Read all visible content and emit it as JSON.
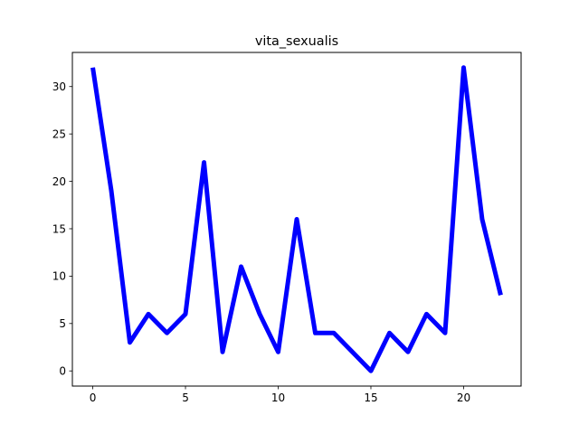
{
  "chart_data": {
    "type": "line",
    "title": "vita_sexualis",
    "xlabel": "",
    "ylabel": "",
    "x": [
      0,
      1,
      2,
      3,
      4,
      5,
      6,
      7,
      8,
      9,
      10,
      11,
      12,
      13,
      14,
      15,
      16,
      17,
      18,
      19,
      20,
      21,
      22
    ],
    "series": [
      {
        "values": [
          32,
          19,
          3,
          6,
          4,
          6,
          22,
          2,
          11,
          6,
          2,
          16,
          4,
          4,
          2,
          0,
          4,
          2,
          6,
          4,
          32,
          16,
          8
        ],
        "color": "#0000ff"
      }
    ],
    "xlim": [
      -1.1,
      23.1
    ],
    "ylim": [
      -1.6,
      33.6
    ],
    "xticks": [
      0,
      5,
      10,
      15,
      20
    ],
    "yticks": [
      0,
      5,
      10,
      15,
      20,
      25,
      30
    ],
    "xtick_labels": [
      "0",
      "5",
      "10",
      "15",
      "20"
    ],
    "ytick_labels": [
      "0",
      "5",
      "10",
      "15",
      "20",
      "25",
      "30"
    ],
    "grid": false,
    "legend": "none"
  }
}
